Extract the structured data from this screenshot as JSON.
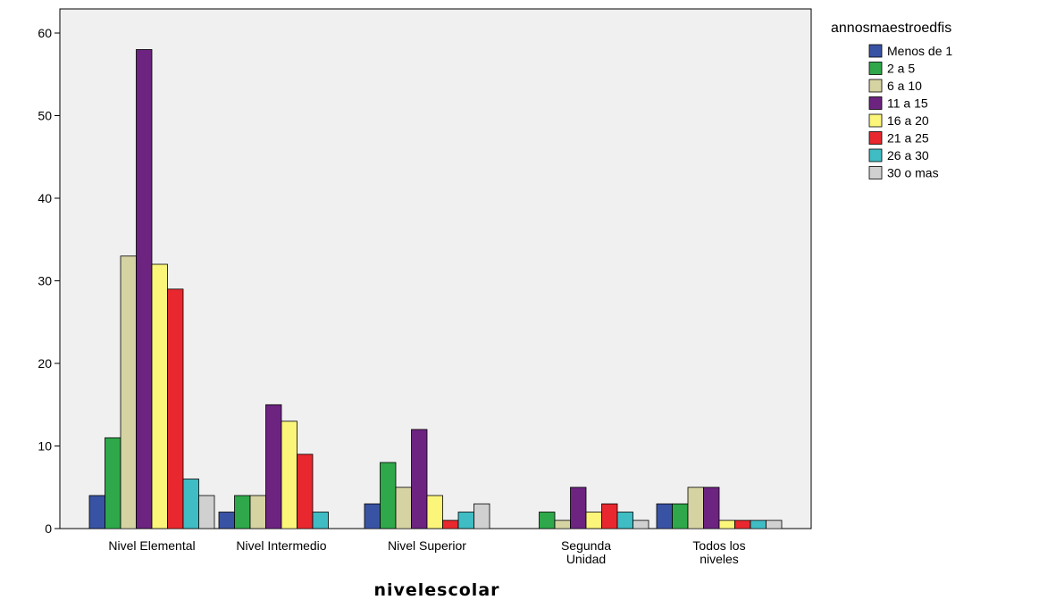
{
  "chart_data": {
    "type": "bar",
    "xlabel": "nivelescolar",
    "ylabel": "",
    "ylim": [
      0,
      60
    ],
    "yticks": [
      0,
      10,
      20,
      30,
      40,
      50,
      60
    ],
    "grid": false,
    "legend_title": "annosmaestroedfis",
    "legend_position": "right",
    "categories": [
      [
        "Nivel Elemental"
      ],
      [
        "Nivel Intermedio"
      ],
      [
        "Nivel Superior"
      ],
      [
        "Segunda",
        "Unidad"
      ],
      [
        "Todos los",
        "niveles"
      ]
    ],
    "series": [
      {
        "name": "Menos de 1",
        "color": "#3953a4",
        "values": [
          4,
          2,
          3,
          0,
          3
        ]
      },
      {
        "name": "2 a 5",
        "color": "#2ea84a",
        "values": [
          11,
          4,
          8,
          2,
          3
        ]
      },
      {
        "name": "6 a 10",
        "color": "#d6d3a3",
        "values": [
          33,
          4,
          5,
          1,
          5
        ]
      },
      {
        "name": "11 a 15",
        "color": "#6c2480",
        "values": [
          58,
          15,
          12,
          5,
          5
        ]
      },
      {
        "name": "16 a 20",
        "color": "#fbf57a",
        "values": [
          32,
          13,
          4,
          2,
          1
        ]
      },
      {
        "name": "21 a 25",
        "color": "#e8282e",
        "values": [
          29,
          9,
          1,
          3,
          1
        ]
      },
      {
        "name": "26 a 30",
        "color": "#3fbcc4",
        "values": [
          6,
          2,
          2,
          2,
          1
        ]
      },
      {
        "name": "30 o mas",
        "color": "#d0d0d0",
        "values": [
          4,
          0,
          3,
          1,
          1
        ]
      }
    ]
  },
  "colors": {
    "plot_background": "#f0f0f0",
    "axis": "#000000"
  }
}
